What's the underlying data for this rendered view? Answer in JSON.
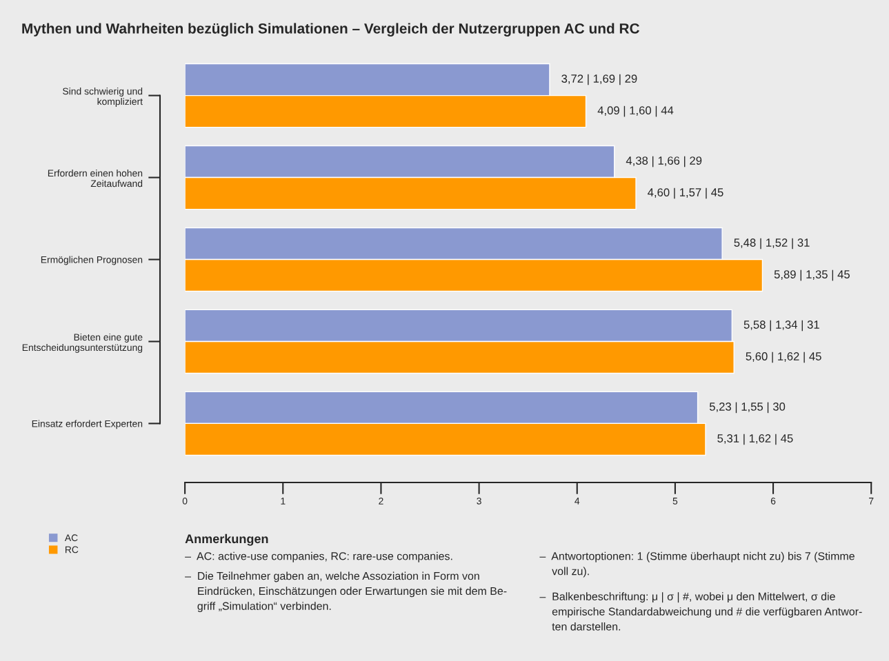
{
  "chart_data": {
    "type": "bar",
    "orientation": "horizontal",
    "title": "Mythen und Wahrheiten bezüglich Simulationen – Vergleich der Nutzergruppen AC und RC",
    "categories": [
      "Sind schwierig und\nkompliziert",
      "Erfordern einen hohen\nZeitaufwand",
      "Ermöglichen Prognosen",
      "Bieten eine gute\nEntscheidungsunterstützung",
      "Einsatz erfordert Experten"
    ],
    "series": [
      {
        "name": "AC",
        "color": "#8a99d0",
        "values": [
          3.72,
          4.38,
          5.48,
          5.58,
          5.23
        ],
        "value_labels": [
          "3,72 | 1,69 | 29",
          "4,38 | 1,66 | 29",
          "5,48 | 1,52 | 31",
          "5,58 | 1,34 | 31",
          "5,23 | 1,55 | 30"
        ]
      },
      {
        "name": "RC",
        "color": "#ff9900",
        "values": [
          4.09,
          4.6,
          5.89,
          5.6,
          5.31
        ],
        "value_labels": [
          "4,09 | 1,60 | 44",
          "4,60 | 1,57 | 45",
          "5,89 | 1,35 | 45",
          "5,60 | 1,62 | 45",
          "5,31 | 1,62 | 45"
        ]
      }
    ],
    "xlim": [
      0,
      7
    ],
    "xticks": [
      0,
      1,
      2,
      3,
      4,
      5,
      6,
      7
    ],
    "grid": false,
    "legend": "bottom left",
    "annotations": [
      "Anmerkungen",
      "–  AC: active-use companies, RC: rare-use companies.",
      "–  Die Teilnehmer gaben an, welche Assoziation in Form von\n    Eindrücken, Einschätzungen oder Erwartungen sie mit dem Be-\n    griff „Simulation“ verbinden.",
      "–  Antwortoptionen: 1 (Stimme überhaupt nicht zu) bis 7 (Stimme\n    voll zu).",
      "–  Balkenbeschriftung: μ | σ | #, wobei μ den Mittelwert, σ die\n    empirische Standardabweichung und # die verfügbaren Antwor-\n    ten darstellen."
    ]
  }
}
